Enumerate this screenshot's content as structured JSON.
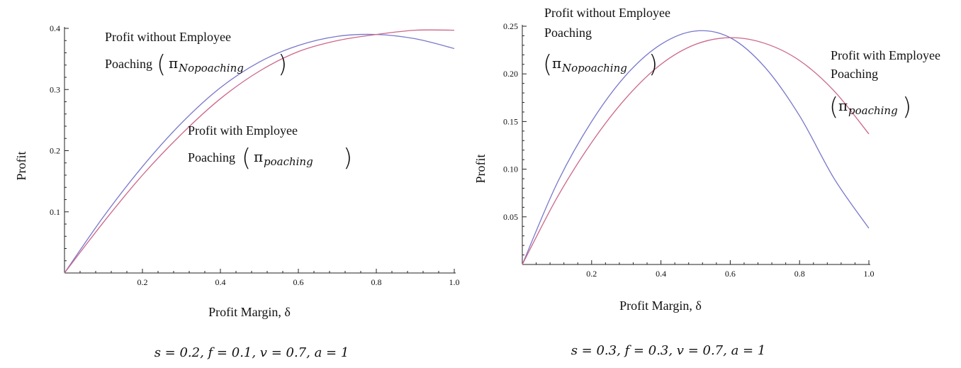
{
  "chart_data": [
    {
      "type": "line",
      "panel": "left",
      "ylabel": "Profit",
      "xlabel": "Profit Margin, δ",
      "params": "s = 0.2, f = 0.1, v = 0.7, a = 1",
      "xlim": [
        0,
        1.0
      ],
      "ylim": [
        0,
        0.4
      ],
      "xticks": [
        "0.2",
        "0.4",
        "0.6",
        "0.8",
        "1.0"
      ],
      "yticks": [
        "0.1",
        "0.2",
        "0.3",
        "0.4"
      ],
      "grid": false,
      "series": [
        {
          "name": "π_Nopoaching",
          "color": "#7777cc",
          "x": [
            0,
            0.1,
            0.2,
            0.3,
            0.4,
            0.5,
            0.6,
            0.7,
            0.8,
            0.9,
            1.0
          ],
          "y": [
            0,
            0.092,
            0.174,
            0.245,
            0.303,
            0.345,
            0.372,
            0.387,
            0.39,
            0.383,
            0.367
          ]
        },
        {
          "name": "π_poaching",
          "color": "#cc6688",
          "x": [
            0,
            0.1,
            0.2,
            0.3,
            0.4,
            0.5,
            0.6,
            0.7,
            0.8,
            0.9,
            1.0
          ],
          "y": [
            0,
            0.083,
            0.16,
            0.227,
            0.285,
            0.33,
            0.362,
            0.38,
            0.39,
            0.397,
            0.397
          ]
        }
      ],
      "annotations": [
        {
          "line1": "Profit without Employee",
          "line2": "Poaching",
          "pi": "π",
          "sub": "Nopoaching"
        },
        {
          "line1": "Profit with Employee",
          "line2": "Poaching",
          "pi": "π",
          "sub": "poaching"
        }
      ]
    },
    {
      "type": "line",
      "panel": "right",
      "ylabel": "Profit",
      "xlabel": "Profit Margin, δ",
      "params": "s = 0.3, f = 0.3, v = 0.7, a = 1",
      "xlim": [
        0,
        1.0
      ],
      "ylim": [
        0,
        0.25
      ],
      "xticks": [
        "0.2",
        "0.4",
        "0.6",
        "0.8",
        "1.0"
      ],
      "yticks": [
        "0.05",
        "0.10",
        "0.15",
        "0.20",
        "0.25"
      ],
      "grid": false,
      "series": [
        {
          "name": "π_Nopoaching",
          "color": "#7777cc",
          "x": [
            0,
            0.1,
            0.2,
            0.3,
            0.4,
            0.5,
            0.6,
            0.7,
            0.8,
            0.9,
            1.0
          ],
          "y": [
            0,
            0.085,
            0.15,
            0.199,
            0.231,
            0.245,
            0.238,
            0.207,
            0.156,
            0.09,
            0.038
          ]
        },
        {
          "name": "π_poaching",
          "color": "#cc6688",
          "x": [
            0,
            0.1,
            0.2,
            0.3,
            0.4,
            0.5,
            0.6,
            0.7,
            0.8,
            0.9,
            1.0
          ],
          "y": [
            0,
            0.07,
            0.128,
            0.175,
            0.21,
            0.231,
            0.238,
            0.232,
            0.214,
            0.182,
            0.137
          ]
        }
      ],
      "annotations": [
        {
          "line1": "Profit without Employee",
          "line2": "Poaching",
          "pi": "π",
          "sub": "Nopoaching"
        },
        {
          "line1": "Profit with Employee",
          "line2": "Poaching",
          "pi": "π",
          "sub": "poaching"
        }
      ]
    }
  ]
}
